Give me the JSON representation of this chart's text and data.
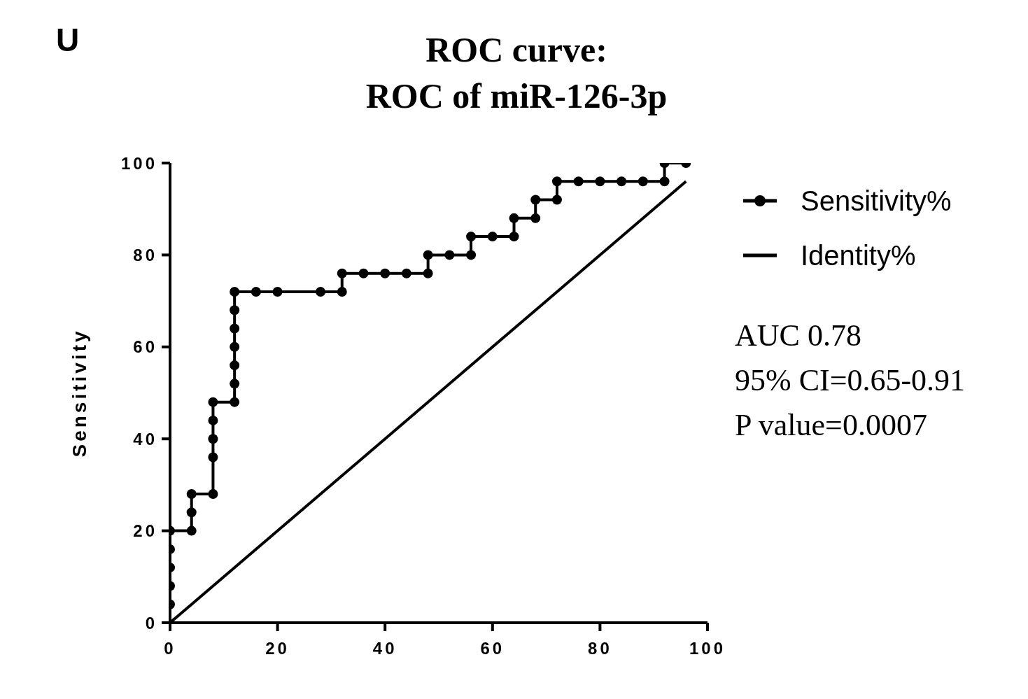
{
  "chart_data": {
    "type": "line",
    "title": "ROC curve:\nROC of miR-126-3p",
    "ylabel": "Sensitivity",
    "xlim": [
      0,
      100
    ],
    "ylim": [
      0,
      100
    ],
    "xticks": [
      0,
      20,
      40,
      60,
      80,
      100
    ],
    "yticks": [
      0,
      20,
      40,
      60,
      80,
      100
    ],
    "legend": "right",
    "line_style": "solid",
    "series": [
      {
        "name": "Sensitivity%",
        "color": "#000000",
        "marker": "circle",
        "x": [
          0,
          0,
          0,
          0,
          0,
          4,
          4,
          4,
          8,
          8,
          8,
          8,
          8,
          12,
          12,
          12,
          12,
          12,
          12,
          12,
          16,
          20,
          28,
          32,
          32,
          36,
          40,
          44,
          48,
          48,
          52,
          56,
          56,
          60,
          64,
          64,
          68,
          68,
          72,
          72,
          76,
          80,
          84,
          88,
          92,
          92,
          96
        ],
        "values": [
          4,
          8,
          12,
          16,
          20,
          20,
          24,
          28,
          28,
          36,
          40,
          44,
          48,
          48,
          52,
          56,
          60,
          64,
          68,
          72,
          72,
          72,
          72,
          72,
          76,
          76,
          76,
          76,
          76,
          80,
          80,
          80,
          84,
          84,
          84,
          88,
          88,
          92,
          92,
          96,
          96,
          96,
          96,
          96,
          96,
          100,
          100
        ]
      },
      {
        "name": "Identity%",
        "color": "#000000",
        "marker": "none",
        "x": [
          0,
          96
        ],
        "values": [
          0,
          96
        ]
      }
    ],
    "annotations": [
      "U",
      "AUC 0.78",
      "95% CI=0.65-0.91",
      "P value=0.0007"
    ]
  }
}
